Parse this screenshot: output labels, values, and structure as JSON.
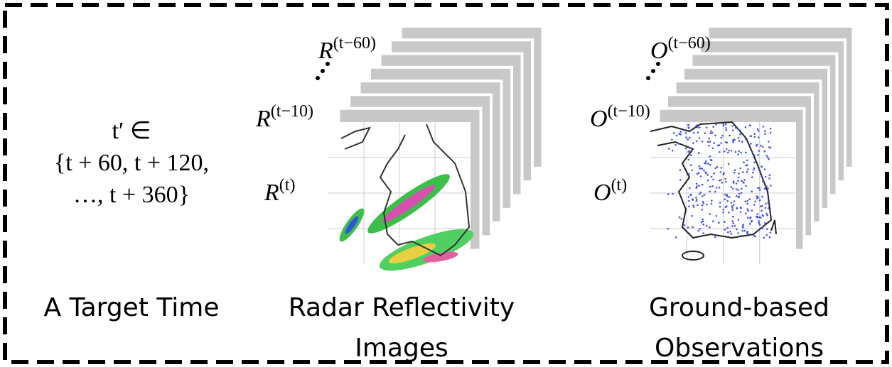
{
  "target_time": {
    "expression": [
      "t′ ∈",
      "{t + 60, t + 120,",
      "…, t + 360}"
    ],
    "caption": "A Target Time"
  },
  "radar": {
    "labels": [
      {
        "base": "R",
        "sup": "(t−60)"
      },
      {
        "base": "R",
        "sup": "(t−10)"
      },
      {
        "base": "R",
        "sup": "(t)"
      }
    ],
    "caption": [
      "Radar Reflectivity",
      "Images"
    ]
  },
  "observations": {
    "labels": [
      {
        "base": "O",
        "sup": "(t−60)"
      },
      {
        "base": "O",
        "sup": "(t−10)"
      },
      {
        "base": "O",
        "sup": "(t)"
      }
    ],
    "caption": [
      "Ground-based",
      "Observations"
    ]
  }
}
